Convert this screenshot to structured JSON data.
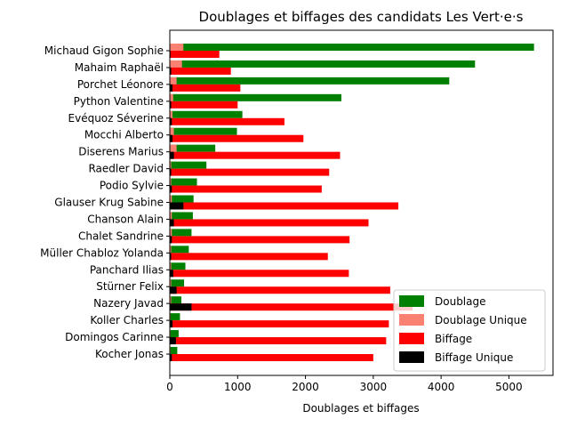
{
  "chart_data": {
    "type": "bar",
    "orientation": "horizontal",
    "title": "Doublages et biffages des candidats Les Vert·e·s",
    "xlabel": "Doublages et biffages",
    "ylabel": "",
    "xlim": [
      0,
      5650
    ],
    "xticks": [
      0,
      1000,
      2000,
      3000,
      4000,
      5000
    ],
    "xtick_labels": [
      "0",
      "1000",
      "2000",
      "3000",
      "4000",
      "5000"
    ],
    "legend_position": "lower-right",
    "grid": false,
    "categories": [
      "Michaud Gigon Sophie",
      "Mahaim Raphaël",
      "Porchet Léonore",
      "Python Valentine",
      "Evéquoz Séverine",
      "Mocchi Alberto",
      "Diserens Marius",
      "Raedler David",
      "Podio Sylvie",
      "Glauser Krug Sabine",
      "Chanson Alain",
      "Chalet Sandrine",
      "Müller Chabloz Yolanda",
      "Panchard Ilias",
      "Stürner Felix",
      "Nazery Javad",
      "Koller Charles",
      "Domingos Carinne",
      "Kocher Jonas"
    ],
    "series": [
      {
        "name": "Doublage",
        "color": "#008000",
        "position": "upper",
        "values": [
          5370,
          4500,
          4120,
          2530,
          1070,
          990,
          670,
          540,
          400,
          350,
          340,
          320,
          280,
          230,
          210,
          170,
          150,
          130,
          110
        ]
      },
      {
        "name": "Doublage Unique",
        "color": "#fa8072",
        "position": "upper",
        "values": [
          200,
          180,
          100,
          50,
          40,
          60,
          100,
          20,
          20,
          30,
          30,
          30,
          20,
          20,
          20,
          20,
          10,
          10,
          10
        ]
      },
      {
        "name": "Biffage",
        "color": "#ff0000",
        "position": "lower",
        "values": [
          730,
          900,
          1040,
          1000,
          1690,
          1970,
          2510,
          2350,
          2240,
          3370,
          2930,
          2650,
          2330,
          2640,
          3250,
          3580,
          3230,
          3190,
          3000
        ]
      },
      {
        "name": "Biffage Unique",
        "color": "#000000",
        "position": "lower",
        "values": [
          10,
          20,
          40,
          20,
          30,
          40,
          60,
          20,
          30,
          200,
          60,
          30,
          20,
          50,
          100,
          320,
          40,
          90,
          30
        ]
      }
    ]
  }
}
